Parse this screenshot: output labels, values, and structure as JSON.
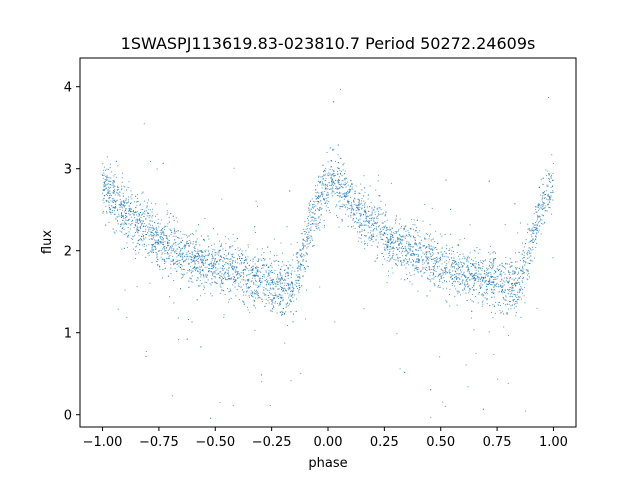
{
  "chart_data": {
    "type": "scatter",
    "title": "1SWASPJ113619.83-023810.7 Period 50272.24609s",
    "xlabel": "phase",
    "ylabel": "flux",
    "xlim": [
      -1.1,
      1.1
    ],
    "ylim": [
      -0.15,
      4.35
    ],
    "xticks": [
      "−1.00",
      "−0.75",
      "−0.50",
      "−0.25",
      "0.00",
      "0.25",
      "0.50",
      "0.75",
      "1.00"
    ],
    "xtick_values": [
      -1.0,
      -0.75,
      -0.5,
      -0.25,
      0.0,
      0.25,
      0.5,
      0.75,
      1.0
    ],
    "yticks": [
      "0",
      "1",
      "2",
      "3",
      "4"
    ],
    "ytick_values": [
      0,
      1,
      2,
      3,
      4
    ],
    "grid": false,
    "point_color": "#1f77b4",
    "phase_range": [
      -1.0,
      1.0
    ],
    "light_curve": {
      "x": [
        -1.0,
        -0.9,
        -0.8,
        -0.7,
        -0.6,
        -0.5,
        -0.4,
        -0.3,
        -0.2,
        -0.15,
        -0.1,
        -0.05,
        0.0,
        0.03,
        0.1,
        0.2,
        0.3,
        0.4,
        0.5,
        0.6,
        0.7,
        0.8,
        0.85,
        0.9,
        0.95,
        1.0
      ],
      "y": [
        2.8,
        2.45,
        2.25,
        2.05,
        1.9,
        1.8,
        1.72,
        1.65,
        1.55,
        1.52,
        2.1,
        2.55,
        2.8,
        2.9,
        2.55,
        2.3,
        2.1,
        1.95,
        1.82,
        1.72,
        1.65,
        1.58,
        1.55,
        2.1,
        2.55,
        2.85
      ]
    }
  }
}
